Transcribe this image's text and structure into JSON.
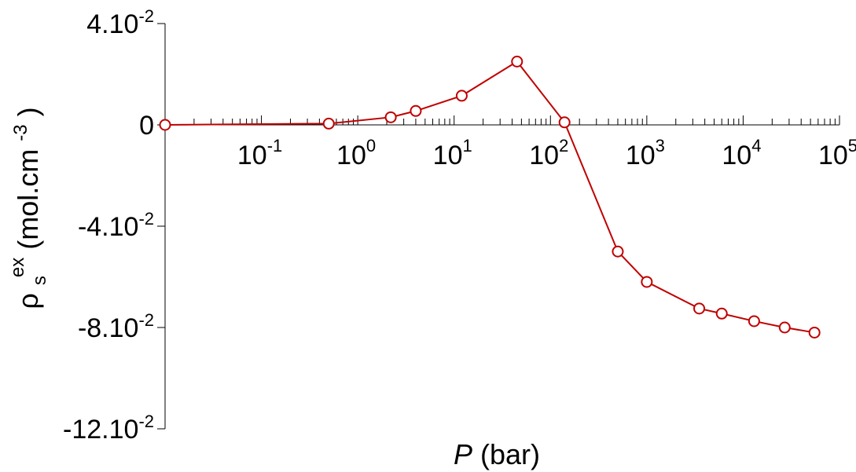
{
  "chart_data": {
    "type": "line",
    "title": "",
    "xlabel": {
      "symbol": "P",
      "unit": "(bar)"
    },
    "ylabel": {
      "prefix": "ρ",
      "sub": "s",
      "sup": "ex",
      "unit_start": " (mol.cm",
      "unit_sup": "-3",
      "unit_end": ")"
    },
    "x_scale": "log",
    "xlim": [
      0.01,
      100000
    ],
    "ylim": [
      -0.12,
      0.04
    ],
    "x_ticks": [
      {
        "base": "10",
        "exp": "-1"
      },
      {
        "base": "10",
        "exp": "0"
      },
      {
        "base": "10",
        "exp": "1"
      },
      {
        "base": "10",
        "exp": "2"
      },
      {
        "base": "10",
        "exp": "3"
      },
      {
        "base": "10",
        "exp": "4"
      },
      {
        "base": "10",
        "exp": "5"
      }
    ],
    "y_ticks": [
      {
        "value": 0.04,
        "main": "4.10",
        "exp": "-2"
      },
      {
        "value": 0,
        "main": "0",
        "exp": ""
      },
      {
        "value": -0.04,
        "main": "-4.10",
        "exp": "-2"
      },
      {
        "value": -0.08,
        "main": "-8.10",
        "exp": "-2"
      },
      {
        "value": -0.12,
        "main": "-12.10",
        "exp": "-2"
      }
    ],
    "series": [
      {
        "color": "#c00000",
        "marker": "open-circle",
        "x": [
          0.01,
          0.5,
          2.2,
          4,
          12,
          45,
          140,
          500,
          1000,
          3500,
          6000,
          13000,
          27000,
          55000
        ],
        "y": [
          0,
          0.0005,
          0.003,
          0.0055,
          0.0115,
          0.025,
          0.001,
          -0.05,
          -0.062,
          -0.0725,
          -0.0745,
          -0.0775,
          -0.08,
          -0.082
        ]
      }
    ]
  }
}
